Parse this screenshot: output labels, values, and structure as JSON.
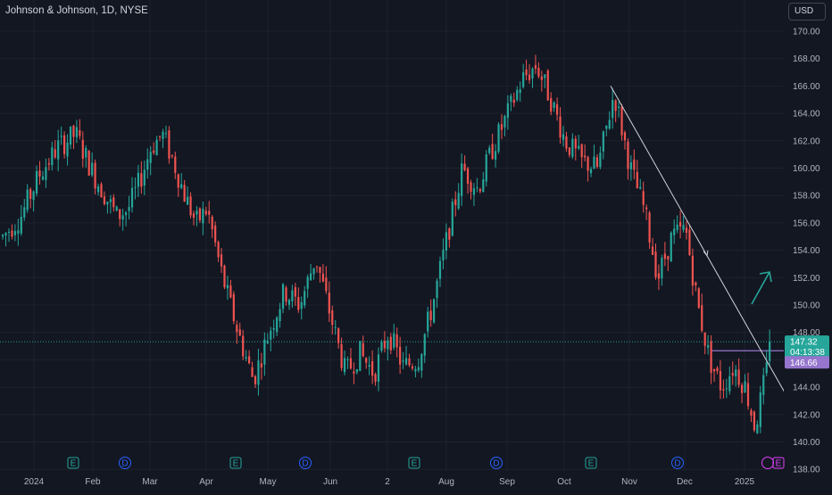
{
  "header": {
    "title": "Johnson & Johnson, 1D, NYSE",
    "currency": "USD"
  },
  "colors": {
    "background": "#131722",
    "up": "#26a69a",
    "down": "#ef5350",
    "gridline": "#1e222d",
    "text": "#b2b5be",
    "trendline": "#d1d4dc",
    "level_line": "#9575cd",
    "arrow": "#26a69a"
  },
  "price_axis": {
    "ticks": [
      "170.00",
      "168.00",
      "166.00",
      "164.00",
      "162.00",
      "160.00",
      "158.00",
      "156.00",
      "154.00",
      "152.00",
      "150.00",
      "148.00",
      "146.00",
      "144.00",
      "142.00",
      "140.00",
      "138.00"
    ],
    "current_price": "147.32",
    "countdown": "04:13:38",
    "horizontal_level": "146.66"
  },
  "time_axis": {
    "labels": [
      "2024",
      "Feb",
      "Mar",
      "Apr",
      "May",
      "Jun",
      "2",
      "Aug",
      "Sep",
      "Oct",
      "Nov",
      "Dec",
      "2025"
    ]
  },
  "event_markers": [
    "E",
    "D",
    "E",
    "D",
    "E",
    "D",
    "E",
    "D"
  ],
  "chart_data": {
    "type": "candlestick",
    "symbol": "Johnson & Johnson",
    "interval": "1D",
    "exchange": "NYSE",
    "y_range": [
      138,
      171
    ],
    "x_labels": [
      "2024",
      "Feb",
      "Mar",
      "Apr",
      "May",
      "Jun",
      "2",
      "Aug",
      "Sep",
      "Oct",
      "Nov",
      "Dec",
      "2025"
    ],
    "price_path": [
      {
        "period": "2024",
        "close": 155.0
      },
      {
        "period": "2024",
        "close": 156.5
      },
      {
        "period": "2024",
        "close": 159.5
      },
      {
        "period": "2024",
        "close": 161.5
      },
      {
        "period": "2024",
        "close": 162.5
      },
      {
        "period": "Feb",
        "close": 159.5
      },
      {
        "period": "Feb",
        "close": 158.0
      },
      {
        "period": "Feb",
        "close": 156.5
      },
      {
        "period": "Feb",
        "close": 157.0
      },
      {
        "period": "Feb",
        "close": 159.0
      },
      {
        "period": "Mar",
        "close": 161.5
      },
      {
        "period": "Mar",
        "close": 162.5
      },
      {
        "period": "Mar",
        "close": 160.5
      },
      {
        "period": "Mar",
        "close": 158.0
      },
      {
        "period": "Mar",
        "close": 156.0
      },
      {
        "period": "Apr",
        "close": 157.0
      },
      {
        "period": "Apr",
        "close": 152.0
      },
      {
        "period": "Apr",
        "close": 148.0
      },
      {
        "period": "Apr",
        "close": 144.5
      },
      {
        "period": "May",
        "close": 148.0
      },
      {
        "period": "May",
        "close": 151.0
      },
      {
        "period": "May",
        "close": 150.0
      },
      {
        "period": "May",
        "close": 153.5
      },
      {
        "period": "Jun",
        "close": 149.0
      },
      {
        "period": "Jun",
        "close": 145.0
      },
      {
        "period": "Jun",
        "close": 146.5
      },
      {
        "period": "Jun",
        "close": 145.0
      },
      {
        "period": "2",
        "close": 148.0
      },
      {
        "period": "2",
        "close": 145.5
      },
      {
        "period": "2",
        "close": 146.0
      },
      {
        "period": "2",
        "close": 150.0
      },
      {
        "period": "Aug",
        "close": 155.0
      },
      {
        "period": "Aug",
        "close": 160.0
      },
      {
        "period": "Aug",
        "close": 158.5
      },
      {
        "period": "Aug",
        "close": 161.5
      },
      {
        "period": "Sep",
        "close": 164.0
      },
      {
        "period": "Sep",
        "close": 166.5
      },
      {
        "period": "Sep",
        "close": 167.5
      },
      {
        "period": "Sep",
        "close": 165.0
      },
      {
        "period": "Oct",
        "close": 162.0
      },
      {
        "period": "Oct",
        "close": 160.5
      },
      {
        "period": "Oct",
        "close": 160.0
      },
      {
        "period": "Oct",
        "close": 165.5
      },
      {
        "period": "Nov",
        "close": 160.0
      },
      {
        "period": "Nov",
        "close": 157.0
      },
      {
        "period": "Nov",
        "close": 152.0
      },
      {
        "period": "Nov",
        "close": 155.0
      },
      {
        "period": "Dec",
        "close": 155.5
      },
      {
        "period": "Dec",
        "close": 150.0
      },
      {
        "period": "Dec",
        "close": 146.0
      },
      {
        "period": "Dec",
        "close": 144.0
      },
      {
        "period": "Dec",
        "close": 145.5
      },
      {
        "period": "2025",
        "close": 144.0
      },
      {
        "period": "2025",
        "close": 141.0
      },
      {
        "period": "2025",
        "close": 147.32
      }
    ],
    "trendline": {
      "from": {
        "period": "Oct",
        "price": 166.0
      },
      "to": {
        "period": "2025",
        "price": 143.5
      }
    },
    "level": 146.66,
    "last_price": 147.32
  }
}
